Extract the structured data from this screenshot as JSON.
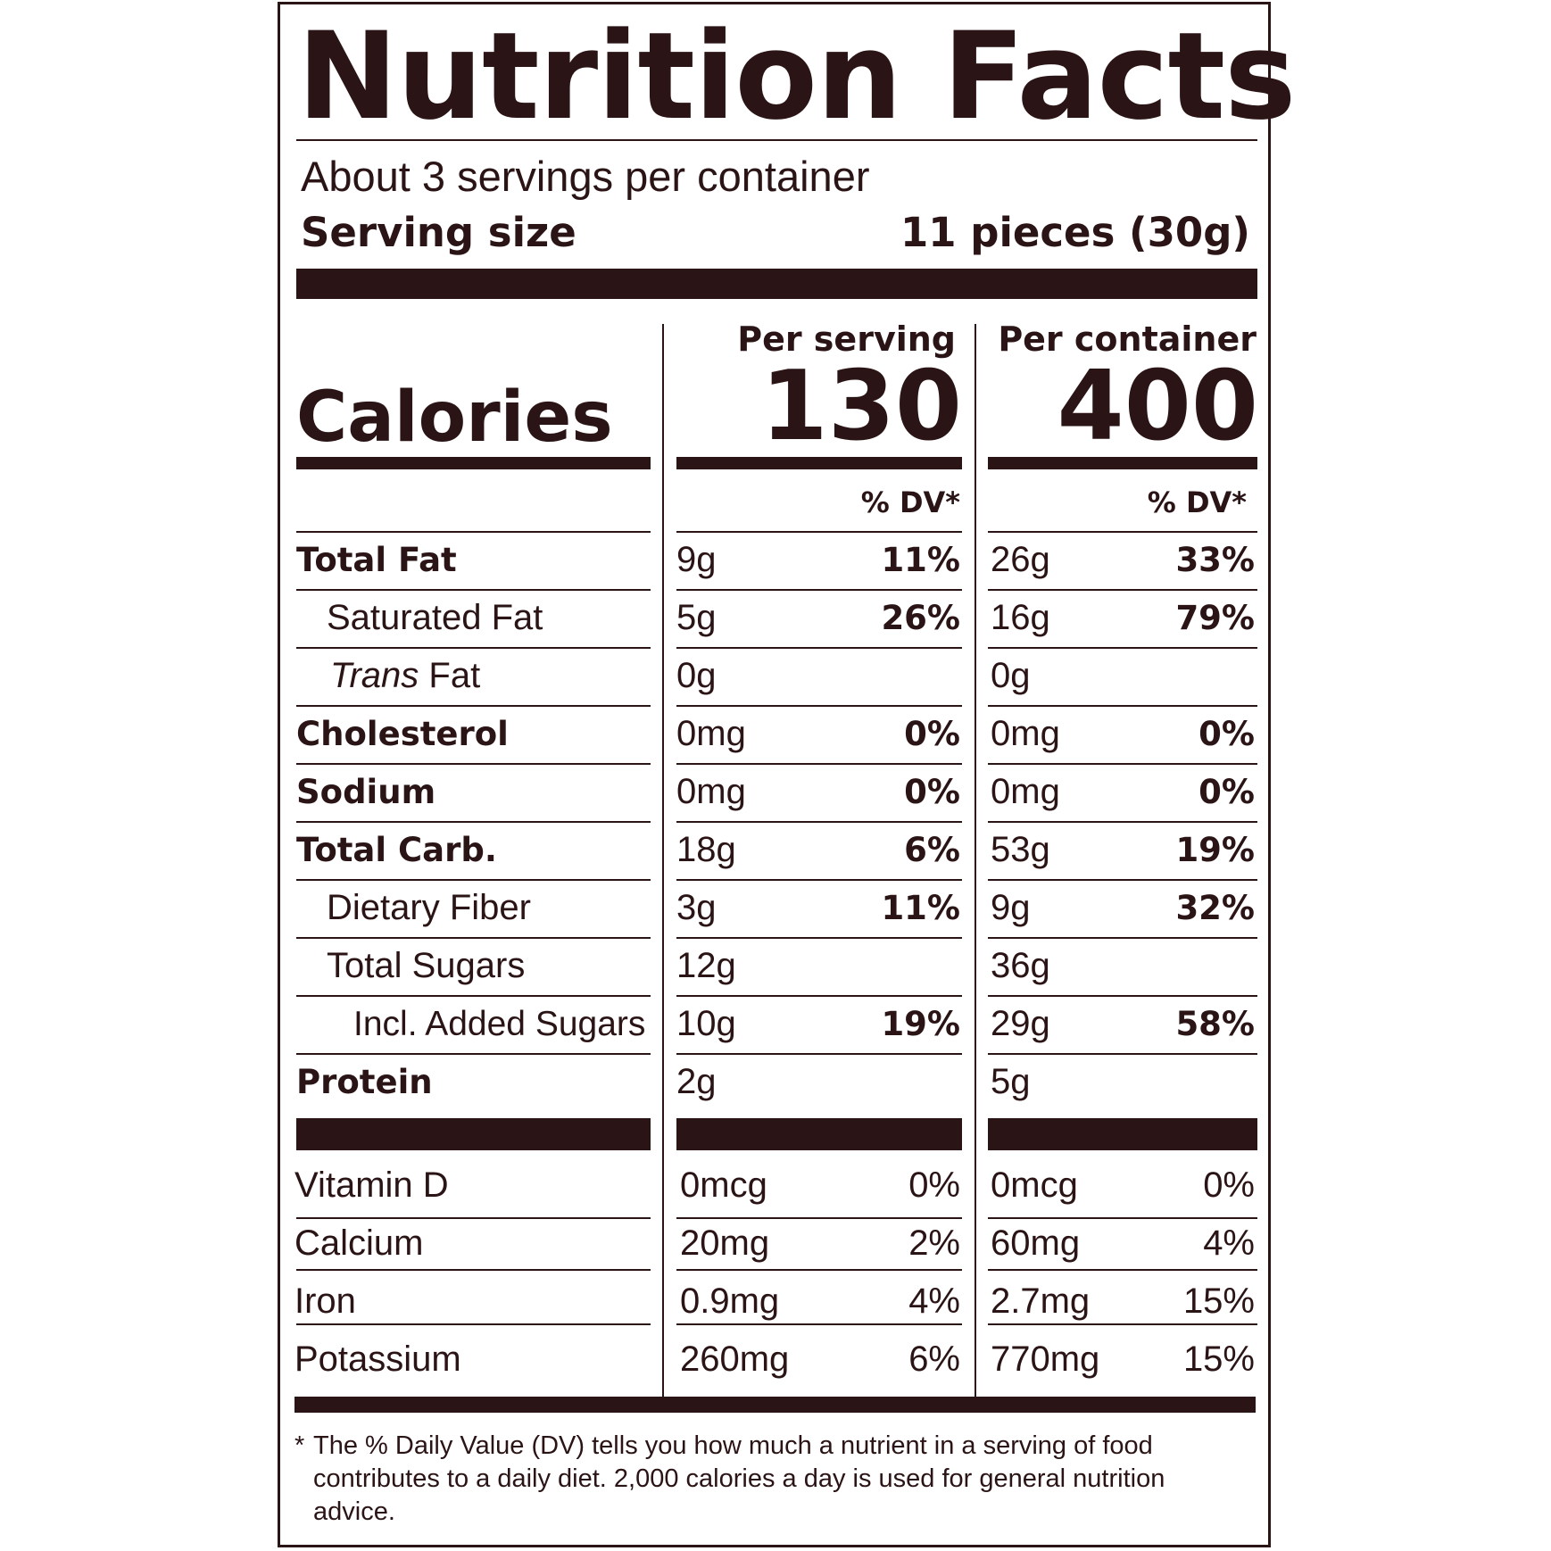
{
  "title": "Nutrition Facts",
  "servings_per_container": "About 3 servings per container",
  "serving_size_label": "Serving size",
  "serving_size_value": "11 pieces (30g)",
  "per_serving_label": "Per serving",
  "per_container_label": "Per container",
  "calories_label": "Calories",
  "calories_per_serving": "130",
  "calories_per_container": "400",
  "dv_header": "% DV*",
  "nutrients": [
    {
      "name": "Total Fat",
      "serving_amount": "9g",
      "serving_dv": "11%",
      "container_amount": "26g",
      "container_dv": "33%"
    },
    {
      "name": "Saturated Fat",
      "serving_amount": "5g",
      "serving_dv": "26%",
      "container_amount": "16g",
      "container_dv": "79%"
    },
    {
      "name_italic": "Trans",
      "name_rest": " Fat",
      "serving_amount": "0g",
      "serving_dv": "",
      "container_amount": "0g",
      "container_dv": ""
    },
    {
      "name": "Cholesterol",
      "serving_amount": "0mg",
      "serving_dv": "0%",
      "container_amount": "0mg",
      "container_dv": "0%"
    },
    {
      "name": "Sodium",
      "serving_amount": "0mg",
      "serving_dv": "0%",
      "container_amount": "0mg",
      "container_dv": "0%"
    },
    {
      "name": "Total Carb.",
      "serving_amount": "18g",
      "serving_dv": "6%",
      "container_amount": "53g",
      "container_dv": "19%"
    },
    {
      "name": "Dietary Fiber",
      "serving_amount": "3g",
      "serving_dv": "11%",
      "container_amount": "9g",
      "container_dv": "32%"
    },
    {
      "name": "Total Sugars",
      "serving_amount": "12g",
      "serving_dv": "",
      "container_amount": "36g",
      "container_dv": ""
    },
    {
      "name": "Incl. Added Sugars",
      "serving_amount": "10g",
      "serving_dv": "19%",
      "container_amount": "29g",
      "container_dv": "58%"
    },
    {
      "name": "Protein",
      "serving_amount": "2g",
      "serving_dv": "",
      "container_amount": "5g",
      "container_dv": ""
    }
  ],
  "vitamins": [
    {
      "name": "Vitamin D",
      "serving_amount": "0mcg",
      "serving_dv": "0%",
      "container_amount": "0mcg",
      "container_dv": "0%"
    },
    {
      "name": "Calcium",
      "serving_amount": "20mg",
      "serving_dv": "2%",
      "container_amount": "60mg",
      "container_dv": "4%"
    },
    {
      "name": "Iron",
      "serving_amount": "0.9mg",
      "serving_dv": "4%",
      "container_amount": "2.7mg",
      "container_dv": "15%"
    },
    {
      "name": "Potassium",
      "serving_amount": "260mg",
      "serving_dv": "6%",
      "container_amount": "770mg",
      "container_dv": "15%"
    }
  ],
  "footnote_star": "*",
  "footnote": "The % Daily Value (DV) tells you how much a nutrient in a serving of food contributes to a daily diet. 2,000 calories a day is used for general nutrition advice.",
  "colors": {
    "ink": "#2b1416",
    "background": "#ffffff"
  }
}
